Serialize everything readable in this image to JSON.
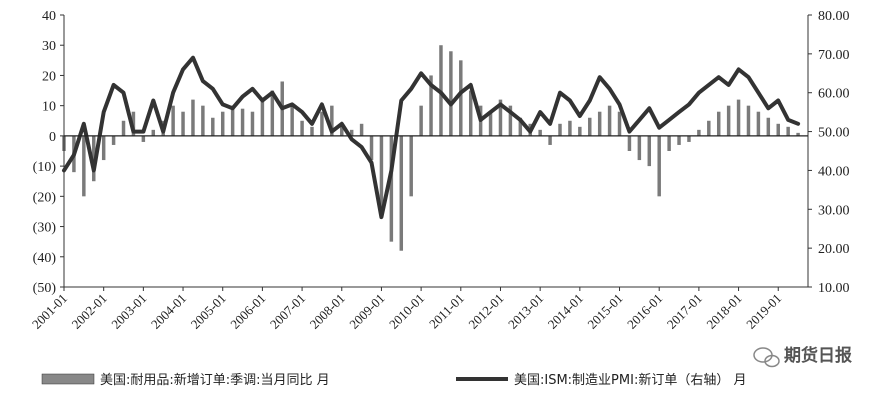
{
  "watermark": "期货日报",
  "chart_data": {
    "type": "bar+line",
    "left_axis": {
      "ylim": [
        -50,
        40
      ],
      "ticks": [
        "40",
        "30",
        "20",
        "10",
        "0",
        "(10)",
        "(20)",
        "(30)",
        "(40)",
        "(50)"
      ]
    },
    "right_axis": {
      "ylim": [
        10,
        80
      ],
      "ticks": [
        "80.00",
        "70.00",
        "60.00",
        "50.00",
        "40.00",
        "30.00",
        "20.00",
        "10.00"
      ]
    },
    "x_ticks": [
      "2001-01",
      "2002-01",
      "2003-01",
      "2004-01",
      "2005-01",
      "2006-01",
      "2007-01",
      "2008-01",
      "2009-01",
      "2010-01",
      "2011-01",
      "2012-01",
      "2013-01",
      "2014-01",
      "2015-01",
      "2016-01",
      "2017-01",
      "2018-01",
      "2019-01"
    ],
    "series": [
      {
        "name": "美国:耐用品:新增订单:季调:当月同比 月",
        "type": "bar",
        "axis": "left",
        "x": [
          "2001-01",
          "2001-04",
          "2001-07",
          "2001-10",
          "2002-01",
          "2002-04",
          "2002-07",
          "2002-10",
          "2003-01",
          "2003-04",
          "2003-07",
          "2003-10",
          "2004-01",
          "2004-04",
          "2004-07",
          "2004-10",
          "2005-01",
          "2005-04",
          "2005-07",
          "2005-10",
          "2006-01",
          "2006-04",
          "2006-07",
          "2006-10",
          "2007-01",
          "2007-04",
          "2007-07",
          "2007-10",
          "2008-01",
          "2008-04",
          "2008-07",
          "2008-10",
          "2009-01",
          "2009-04",
          "2009-07",
          "2009-10",
          "2010-01",
          "2010-04",
          "2010-07",
          "2010-10",
          "2011-01",
          "2011-04",
          "2011-07",
          "2011-10",
          "2012-01",
          "2012-04",
          "2012-07",
          "2012-10",
          "2013-01",
          "2013-04",
          "2013-07",
          "2013-10",
          "2014-01",
          "2014-04",
          "2014-07",
          "2014-10",
          "2015-01",
          "2015-04",
          "2015-07",
          "2015-10",
          "2016-01",
          "2016-04",
          "2016-07",
          "2016-10",
          "2017-01",
          "2017-04",
          "2017-07",
          "2017-10",
          "2018-01",
          "2018-04",
          "2018-07",
          "2018-10",
          "2019-01",
          "2019-04",
          "2019-07"
        ],
        "values": [
          -5,
          -12,
          -20,
          -15,
          -8,
          -3,
          5,
          8,
          -2,
          2,
          5,
          10,
          8,
          12,
          10,
          6,
          8,
          10,
          9,
          8,
          12,
          15,
          18,
          10,
          5,
          3,
          8,
          10,
          3,
          2,
          4,
          -8,
          -25,
          -35,
          -38,
          -20,
          10,
          20,
          30,
          28,
          25,
          15,
          10,
          8,
          12,
          10,
          6,
          4,
          2,
          -3,
          4,
          5,
          3,
          6,
          8,
          10,
          8,
          -5,
          -8,
          -10,
          -20,
          -5,
          -3,
          -2,
          2,
          5,
          8,
          10,
          12,
          10,
          8,
          6,
          4,
          3,
          1
        ]
      },
      {
        "name": "美国:ISM:制造业PMI:新订单（右轴） 月",
        "type": "line",
        "axis": "right",
        "x": [
          "2001-01",
          "2001-04",
          "2001-07",
          "2001-10",
          "2002-01",
          "2002-04",
          "2002-07",
          "2002-10",
          "2003-01",
          "2003-04",
          "2003-07",
          "2003-10",
          "2004-01",
          "2004-04",
          "2004-07",
          "2004-10",
          "2005-01",
          "2005-04",
          "2005-07",
          "2005-10",
          "2006-01",
          "2006-04",
          "2006-07",
          "2006-10",
          "2007-01",
          "2007-04",
          "2007-07",
          "2007-10",
          "2008-01",
          "2008-04",
          "2008-07",
          "2008-10",
          "2009-01",
          "2009-04",
          "2009-07",
          "2009-10",
          "2010-01",
          "2010-04",
          "2010-07",
          "2010-10",
          "2011-01",
          "2011-04",
          "2011-07",
          "2011-10",
          "2012-01",
          "2012-04",
          "2012-07",
          "2012-10",
          "2013-01",
          "2013-04",
          "2013-07",
          "2013-10",
          "2014-01",
          "2014-04",
          "2014-07",
          "2014-10",
          "2015-01",
          "2015-04",
          "2015-07",
          "2015-10",
          "2016-01",
          "2016-04",
          "2016-07",
          "2016-10",
          "2017-01",
          "2017-04",
          "2017-07",
          "2017-10",
          "2018-01",
          "2018-04",
          "2018-07",
          "2018-10",
          "2019-01",
          "2019-04",
          "2019-07"
        ],
        "values": [
          40,
          44,
          52,
          40,
          55,
          62,
          60,
          50,
          50,
          58,
          50,
          60,
          66,
          69,
          63,
          61,
          57,
          56,
          59,
          61,
          58,
          60,
          56,
          57,
          55,
          52,
          57,
          50,
          52,
          48,
          46,
          42,
          28,
          40,
          58,
          61,
          65,
          62,
          60,
          57,
          60,
          62,
          53,
          55,
          57,
          55,
          53,
          50,
          55,
          52,
          60,
          58,
          54,
          58,
          64,
          61,
          57,
          50,
          53,
          56,
          51,
          53,
          55,
          57,
          60,
          62,
          64,
          62,
          66,
          64,
          60,
          56,
          58,
          53,
          52
        ]
      }
    ]
  }
}
